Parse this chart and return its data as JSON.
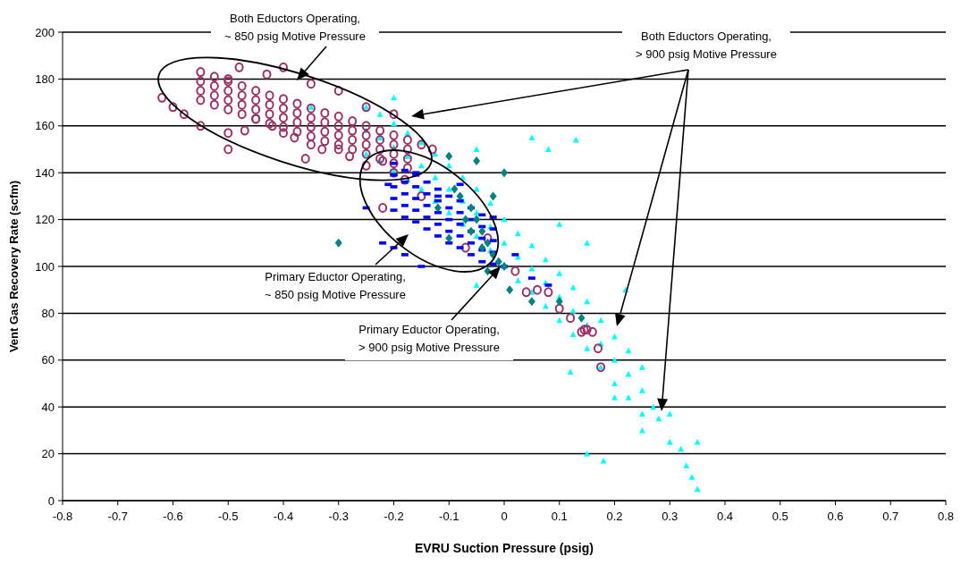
{
  "chart_data": {
    "type": "scatter",
    "xlabel": "EVRU Suction Pressure (psig)",
    "ylabel": "Vent Gas Recovery Rate (scfm)",
    "xlim": [
      -0.8,
      0.8
    ],
    "xticks": [
      -0.8,
      -0.7,
      -0.6,
      -0.5,
      -0.4,
      -0.3,
      -0.2,
      -0.1,
      0,
      0.1,
      0.2,
      0.3,
      0.4,
      0.5,
      0.6,
      0.7,
      0.8
    ],
    "ylim": [
      0,
      200
    ],
    "yticks": [
      0,
      20,
      40,
      60,
      80,
      100,
      120,
      140,
      160,
      180,
      200
    ],
    "grid": "y",
    "annotations": [
      "Both Eductors Operating,\n~ 850 psig Motive Pressure",
      "Both Eductors Operating,\n> 900 psig Motive Pressure",
      "Primary Eductor Operating,\n~ 850 psig Motive Pressure",
      "Primary Eductor Operating,\n> 900 psig Motive Pressure"
    ],
    "series": [
      {
        "color": "#00ffff",
        "marker": "triangle",
        "x": [
          -0.25,
          -0.25,
          -0.25,
          -0.225,
          -0.225,
          -0.225,
          -0.2,
          -0.2,
          -0.2,
          -0.175,
          -0.175,
          -0.175,
          -0.15,
          -0.15,
          -0.15,
          -0.125,
          -0.125,
          -0.125,
          -0.1,
          -0.1,
          -0.1,
          -0.075,
          -0.075,
          -0.075,
          -0.05,
          -0.05,
          -0.05,
          -0.025,
          -0.025,
          -0.025,
          0,
          0,
          0,
          0.025,
          0.025,
          0.025,
          0.05,
          0.05,
          0.05,
          0.075,
          0.075,
          0.075,
          0.1,
          0.1,
          0.1,
          0.125,
          0.125,
          0.125,
          0.15,
          0.15,
          0.15,
          0.175,
          0.175,
          0.175,
          0.2,
          0.2,
          0.2,
          0.225,
          0.225,
          0.225,
          0.25,
          0.25,
          0.25,
          0.28,
          0.3,
          0.32,
          0.33,
          0.34,
          0.35,
          0.35,
          0.3,
          0.27,
          0.15,
          0.18,
          0.2,
          0.13,
          0.05,
          0.08,
          -0.05,
          -0.35,
          -0.2,
          0.1,
          0.15,
          0.22,
          -0.05,
          0.25,
          0.12
        ],
        "values": [
          148,
          158,
          168,
          145,
          155,
          165,
          141,
          151,
          161,
          137,
          147,
          157,
          133,
          143,
          153,
          128,
          138,
          148,
          123,
          133,
          143,
          118,
          128,
          138,
          113,
          123,
          133,
          107,
          117,
          127,
          100,
          110,
          120,
          94,
          104,
          114,
          89,
          99,
          109,
          83,
          93,
          103,
          77,
          87,
          97,
          71,
          81,
          91,
          65,
          75,
          85,
          57,
          67,
          77,
          50,
          60,
          70,
          44,
          54,
          64,
          37,
          47,
          57,
          35,
          25,
          22,
          15,
          10,
          5,
          25,
          37,
          40,
          20,
          17,
          44,
          154,
          155,
          150,
          150,
          168,
          172,
          118,
          110,
          90,
          92,
          30,
          55
        ]
      },
      {
        "color": "#993366",
        "marker": "circle",
        "x": [
          -0.55,
          -0.55,
          -0.55,
          -0.55,
          -0.525,
          -0.525,
          -0.525,
          -0.525,
          -0.5,
          -0.5,
          -0.5,
          -0.5,
          -0.475,
          -0.475,
          -0.475,
          -0.475,
          -0.45,
          -0.45,
          -0.45,
          -0.45,
          -0.425,
          -0.425,
          -0.425,
          -0.425,
          -0.4,
          -0.4,
          -0.4,
          -0.4,
          -0.375,
          -0.375,
          -0.375,
          -0.375,
          -0.35,
          -0.35,
          -0.35,
          -0.35,
          -0.325,
          -0.325,
          -0.325,
          -0.325,
          -0.3,
          -0.3,
          -0.3,
          -0.3,
          -0.275,
          -0.275,
          -0.275,
          -0.275,
          -0.25,
          -0.25,
          -0.25,
          -0.25,
          -0.225,
          -0.225,
          -0.225,
          -0.225,
          -0.2,
          -0.2,
          -0.2,
          -0.2,
          -0.175,
          -0.175,
          -0.175,
          -0.175,
          -0.62,
          -0.6,
          -0.58,
          -0.55,
          -0.5,
          -0.47,
          -0.45,
          -0.42,
          -0.4,
          -0.38,
          -0.35,
          -0.3,
          -0.28,
          -0.25,
          -0.22,
          -0.2,
          -0.48,
          -0.43,
          -0.4,
          -0.5,
          -0.35,
          -0.3,
          -0.25,
          -0.2,
          -0.15,
          -0.13,
          -0.18,
          -0.22,
          -0.15,
          -0.5,
          -0.36,
          -0.33,
          0.04,
          0.06,
          0.08,
          0.1,
          0.12,
          0.14,
          0.145,
          0.15,
          0.16,
          0.17,
          0.175,
          0.02,
          -0.03,
          -0.07
        ],
        "values": [
          171,
          175,
          179,
          183,
          169,
          173,
          177,
          181,
          167,
          171,
          175,
          179,
          165,
          169,
          173,
          177,
          163,
          167,
          171,
          175,
          161,
          165,
          169,
          173,
          159.5,
          163.5,
          167.5,
          171.5,
          157.5,
          161.5,
          165.5,
          169.5,
          155.5,
          159.5,
          163.5,
          167.5,
          153.5,
          157.5,
          161.5,
          165.5,
          152,
          156,
          160,
          164,
          150,
          154,
          158,
          162,
          148,
          152,
          156,
          160,
          146,
          150,
          154,
          158,
          144,
          148,
          152,
          156,
          142,
          146,
          150,
          154,
          172,
          168,
          165,
          160,
          157,
          158,
          163,
          160,
          157,
          155,
          152,
          150,
          147,
          143,
          145,
          140,
          185,
          182,
          185,
          180,
          178,
          175,
          168,
          165,
          152,
          150,
          137,
          125,
          130,
          150,
          146,
          150,
          89,
          90,
          89,
          82,
          78,
          72,
          73,
          73,
          72,
          65,
          57,
          98,
          112,
          108
        ]
      },
      {
        "color": "#0000ff",
        "marker": "square",
        "x": [
          -0.2,
          -0.2,
          -0.2,
          -0.2,
          -0.2,
          -0.18,
          -0.18,
          -0.18,
          -0.18,
          -0.18,
          -0.16,
          -0.16,
          -0.16,
          -0.16,
          -0.16,
          -0.14,
          -0.14,
          -0.14,
          -0.14,
          -0.14,
          -0.12,
          -0.12,
          -0.12,
          -0.12,
          -0.12,
          -0.1,
          -0.1,
          -0.1,
          -0.1,
          -0.1,
          -0.08,
          -0.08,
          -0.08,
          -0.08,
          -0.08,
          -0.06,
          -0.06,
          -0.06,
          -0.06,
          -0.06,
          -0.04,
          -0.04,
          -0.04,
          -0.04,
          -0.04,
          -0.02,
          -0.02,
          -0.02,
          -0.02,
          -0.02,
          -0.22,
          -0.2,
          -0.18,
          -0.15,
          0.05,
          0.08,
          0,
          -0.25,
          -0.21,
          -0.16,
          -0.12,
          -0.08,
          0.02
        ],
        "values": [
          124,
          129,
          134,
          139,
          144,
          121,
          126,
          131,
          136,
          141,
          119,
          124,
          129,
          134,
          139,
          116,
          121,
          126,
          131,
          136,
          113,
          118,
          123,
          128,
          133,
          110,
          115,
          120,
          125,
          130,
          108,
          113,
          118,
          123,
          128,
          105,
          110,
          115,
          120,
          125,
          102,
          107,
          112,
          117,
          122,
          101,
          106,
          111,
          116,
          121,
          110,
          108,
          105,
          100,
          95,
          92,
          100,
          125,
          135,
          140,
          130,
          135,
          105
        ]
      },
      {
        "color": "#008080",
        "marker": "diamond",
        "x": [
          -0.08,
          -0.06,
          -0.05,
          -0.04,
          -0.03,
          -0.02,
          -0.01,
          0,
          -0.06,
          -0.04,
          0.05,
          -0.3,
          -0.1,
          -0.02,
          -0.05,
          -0.1,
          0,
          0.01,
          0.14,
          0.1,
          -0.03,
          -0.07,
          -0.12,
          -0.09
        ],
        "values": [
          130,
          125,
          120,
          115,
          110,
          105,
          102,
          100,
          115,
          108,
          85,
          110,
          112,
          130,
          145,
          147,
          140,
          90,
          78,
          85,
          98,
          120,
          125,
          133
        ]
      }
    ]
  }
}
